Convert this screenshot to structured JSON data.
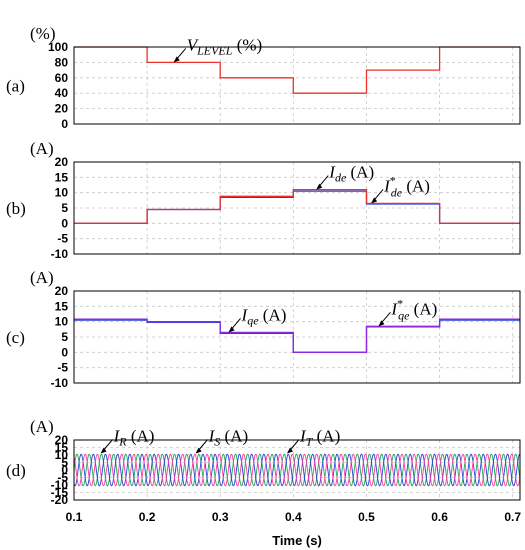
{
  "colors": {
    "red": "#e8322a",
    "blue": "#2b3fd9",
    "purple": "#8a2be2",
    "green": "#1fa85a",
    "pink": "#ff3fa0",
    "grid": "#c8c8c8",
    "axis": "#000000"
  },
  "xlabel": "Time (s)",
  "x_ticks": [
    "0.1",
    "0.2",
    "0.3",
    "0.4",
    "0.5",
    "0.6",
    "0.7"
  ],
  "chart_data": [
    {
      "type": "line",
      "panel_label": "(a)",
      "unit_label": "(%)",
      "ylim": [
        0,
        100
      ],
      "y_ticks": [
        "100",
        "80",
        "60",
        "40",
        "20",
        "0"
      ],
      "xlim": [
        0.1,
        0.71
      ],
      "grid": true,
      "series": [
        {
          "name": "V_LEVEL",
          "color_key": "red",
          "steps": [
            {
              "x0": 0.1,
              "x1": 0.2,
              "y": 100
            },
            {
              "x0": 0.2,
              "x1": 0.3,
              "y": 80
            },
            {
              "x0": 0.3,
              "x1": 0.4,
              "y": 60
            },
            {
              "x0": 0.4,
              "x1": 0.5,
              "y": 40
            },
            {
              "x0": 0.5,
              "x1": 0.6,
              "y": 70
            },
            {
              "x0": 0.6,
              "x1": 0.71,
              "y": 100
            }
          ]
        }
      ],
      "annotations": [
        {
          "main": "V",
          "sub": "LEVEL",
          "sup": "",
          "suffix": "(%)",
          "x": 0.235,
          "y": 80
        }
      ]
    },
    {
      "type": "line",
      "panel_label": "(b)",
      "unit_label": "(A)",
      "ylim": [
        -10,
        20
      ],
      "y_ticks": [
        "20",
        "15",
        "10",
        "5",
        "0",
        "-5",
        "-10"
      ],
      "xlim": [
        0.1,
        0.71
      ],
      "grid": true,
      "series": [
        {
          "name": "I_de",
          "color_key": "blue",
          "steps": [
            {
              "x0": 0.1,
              "x1": 0.2,
              "y": 0
            },
            {
              "x0": 0.2,
              "x1": 0.3,
              "y": 4.5
            },
            {
              "x0": 0.3,
              "x1": 0.4,
              "y": 8.5
            },
            {
              "x0": 0.4,
              "x1": 0.5,
              "y": 10.5
            },
            {
              "x0": 0.5,
              "x1": 0.6,
              "y": 6.3
            },
            {
              "x0": 0.6,
              "x1": 0.71,
              "y": 0
            }
          ]
        },
        {
          "name": "I*_de",
          "color_key": "red",
          "steps": [
            {
              "x0": 0.1,
              "x1": 0.2,
              "y": 0
            },
            {
              "x0": 0.2,
              "x1": 0.3,
              "y": 4.5
            },
            {
              "x0": 0.3,
              "x1": 0.4,
              "y": 8.8
            },
            {
              "x0": 0.4,
              "x1": 0.5,
              "y": 11
            },
            {
              "x0": 0.5,
              "x1": 0.6,
              "y": 6.5
            },
            {
              "x0": 0.6,
              "x1": 0.71,
              "y": 0
            }
          ]
        }
      ],
      "annotations": [
        {
          "main": "I",
          "sub": "de",
          "sup": "",
          "suffix": "(A)",
          "x": 0.43,
          "y": 11
        },
        {
          "main": "I",
          "sub": "de",
          "sup": "*",
          "suffix": "(A)",
          "x": 0.505,
          "y": 6.5
        }
      ]
    },
    {
      "type": "line",
      "panel_label": "(c)",
      "unit_label": "(A)",
      "ylim": [
        -10,
        20
      ],
      "y_ticks": [
        "20",
        "15",
        "10",
        "5",
        "0",
        "-5",
        "-10"
      ],
      "xlim": [
        0.1,
        0.71
      ],
      "grid": true,
      "series": [
        {
          "name": "I_qe",
          "color_key": "blue",
          "steps": [
            {
              "x0": 0.1,
              "x1": 0.2,
              "y": 10.5
            },
            {
              "x0": 0.2,
              "x1": 0.3,
              "y": 9.8
            },
            {
              "x0": 0.3,
              "x1": 0.4,
              "y": 6.2
            },
            {
              "x0": 0.4,
              "x1": 0.5,
              "y": 0
            },
            {
              "x0": 0.5,
              "x1": 0.6,
              "y": 8.3
            },
            {
              "x0": 0.6,
              "x1": 0.71,
              "y": 10.5
            }
          ]
        },
        {
          "name": "I*_qe",
          "color_key": "purple",
          "steps": [
            {
              "x0": 0.1,
              "x1": 0.2,
              "y": 10.8
            },
            {
              "x0": 0.2,
              "x1": 0.3,
              "y": 10
            },
            {
              "x0": 0.3,
              "x1": 0.4,
              "y": 6.5
            },
            {
              "x0": 0.4,
              "x1": 0.5,
              "y": 0
            },
            {
              "x0": 0.5,
              "x1": 0.6,
              "y": 8.5
            },
            {
              "x0": 0.6,
              "x1": 0.71,
              "y": 10.8
            }
          ]
        }
      ],
      "annotations": [
        {
          "main": "I",
          "sub": "qe",
          "sup": "",
          "suffix": "(A)",
          "x": 0.31,
          "y": 6.5
        },
        {
          "main": "I",
          "sub": "qe",
          "sup": "*",
          "suffix": "(A)",
          "x": 0.515,
          "y": 8.5
        }
      ]
    },
    {
      "type": "line",
      "panel_label": "(d)",
      "unit_label": "(A)",
      "ylim": [
        -20,
        20
      ],
      "y_ticks": [
        "20",
        "15",
        "10",
        "5",
        "0",
        "-5",
        "-10",
        "-15",
        "-20"
      ],
      "xlim": [
        0.1,
        0.71
      ],
      "grid": true,
      "series": [
        {
          "name": "I_R",
          "color_key": "green",
          "amplitude": 10.5,
          "frequency_hz": 60,
          "phase_deg": 0
        },
        {
          "name": "I_S",
          "color_key": "blue",
          "amplitude": 10.5,
          "frequency_hz": 60,
          "phase_deg": -120
        },
        {
          "name": "I_T",
          "color_key": "pink",
          "amplitude": 10.5,
          "frequency_hz": 60,
          "phase_deg": 120
        }
      ],
      "annotations": [
        {
          "main": "I",
          "sub": "R",
          "sup": "",
          "suffix": "(A)",
          "x": 0.135,
          "y": 11
        },
        {
          "main": "I",
          "sub": "S",
          "sup": "",
          "suffix": "(A)",
          "x": 0.265,
          "y": 11
        },
        {
          "main": "I",
          "sub": "T",
          "sup": "",
          "suffix": "(A)",
          "x": 0.39,
          "y": 11
        }
      ]
    }
  ]
}
